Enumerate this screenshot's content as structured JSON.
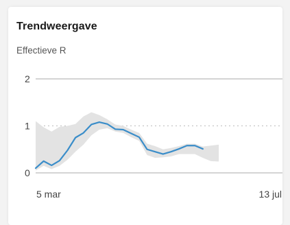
{
  "card": {
    "title": "Trendweergave"
  },
  "chart_data": {
    "type": "line",
    "title": "Trendweergave",
    "ylabel": "Effectieve R",
    "xlabel": "",
    "ylim": [
      0,
      2
    ],
    "y_ticks": [
      "2",
      "1",
      "0"
    ],
    "x_tick_labels": [
      "5 mar",
      "13 jul"
    ],
    "threshold": 1,
    "grid": true,
    "colors": {
      "line": "#3a8dc9",
      "band": "#e3e3e3",
      "axis": "#aaaaaa",
      "threshold": "#bbbbbb"
    },
    "series": [
      {
        "x": [
          0,
          4,
          8,
          12,
          16,
          20,
          24,
          28,
          32,
          36,
          40,
          44,
          48,
          52,
          56,
          60,
          64,
          68,
          72,
          76,
          80,
          84
        ],
        "values": [
          0.1,
          0.25,
          0.16,
          0.26,
          0.48,
          0.75,
          0.85,
          1.03,
          1.08,
          1.04,
          0.93,
          0.92,
          0.84,
          0.76,
          0.5,
          0.45,
          0.4,
          0.45,
          0.51,
          0.58,
          0.58,
          0.51
        ]
      }
    ],
    "band": {
      "x": [
        0,
        4,
        8,
        12,
        16,
        20,
        24,
        28,
        32,
        36,
        40,
        44,
        48,
        52,
        56,
        60,
        64,
        68,
        72,
        76,
        80,
        84,
        88,
        92
      ],
      "upper": [
        1.1,
        0.97,
        0.88,
        0.98,
        1.0,
        1.04,
        1.2,
        1.29,
        1.23,
        1.14,
        1.03,
        1.0,
        0.92,
        0.85,
        0.62,
        0.57,
        0.5,
        0.53,
        0.57,
        0.62,
        0.62,
        0.56,
        0.58,
        0.6
      ],
      "lower": [
        0.05,
        0.15,
        0.08,
        0.15,
        0.28,
        0.45,
        0.6,
        0.8,
        0.92,
        0.95,
        0.88,
        0.85,
        0.76,
        0.68,
        0.38,
        0.32,
        0.33,
        0.35,
        0.4,
        0.4,
        0.4,
        0.32,
        0.25,
        0.24
      ]
    }
  }
}
